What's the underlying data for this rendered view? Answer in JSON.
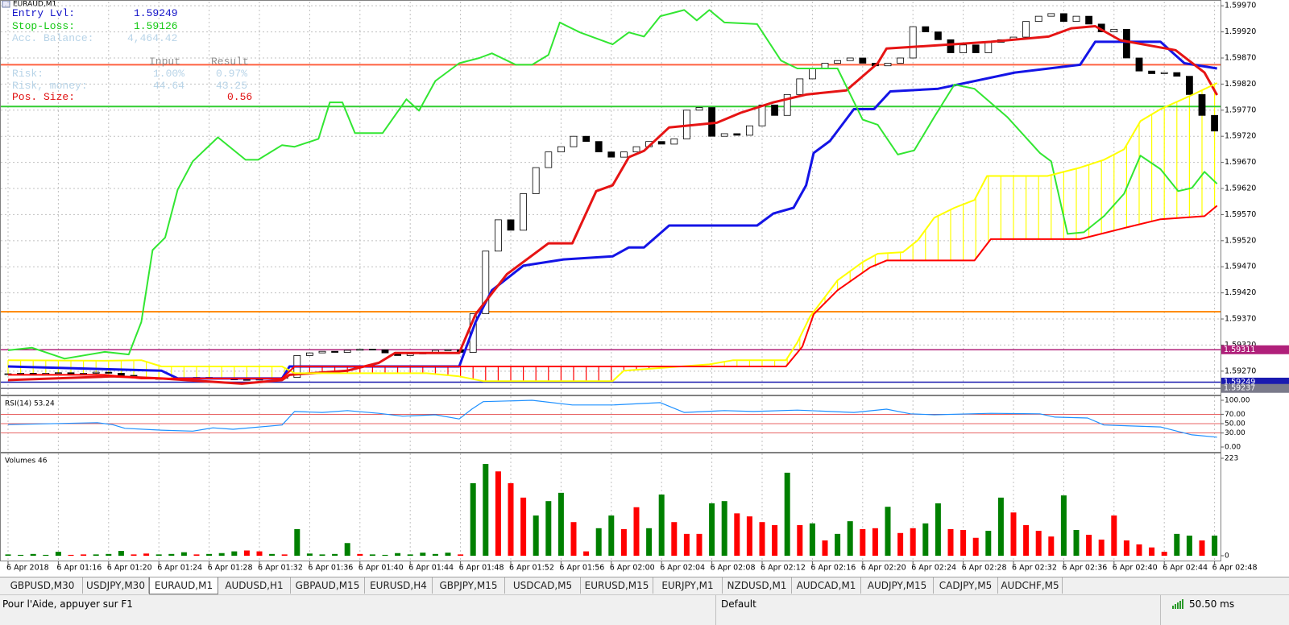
{
  "window": {
    "title": "EURAUD,M1"
  },
  "info_panel": {
    "entry_label": "Entry Lvl:",
    "entry_value": "1.59249",
    "stop_label": "Stop-Loss:",
    "stop_value": "1.59126",
    "balance_label": "Acc. Balance:",
    "balance_value": "4,464.42",
    "input_header": "Input",
    "result_header": "Result",
    "rows": [
      [
        "Risk:",
        "1.00%",
        "0.97%"
      ],
      [
        "Risk, money:",
        "44.64",
        "43.25"
      ]
    ],
    "pos_label": "Pos. Size:",
    "pos_value": "0.56"
  },
  "price_chart": {
    "type": "candlestick",
    "ylim": [
      1.59225,
      1.59978
    ],
    "yticks": [
      {
        "value": 1.5997,
        "label": "1.59970"
      },
      {
        "value": 1.5992,
        "label": "1.59920"
      },
      {
        "value": 1.5987,
        "label": "1.59870"
      },
      {
        "value": 1.5982,
        "label": "1.59820"
      },
      {
        "value": 1.5977,
        "label": "1.59770"
      },
      {
        "value": 1.5972,
        "label": "1.59720"
      },
      {
        "value": 1.5967,
        "label": "1.59670"
      },
      {
        "value": 1.5962,
        "label": "1.59620"
      },
      {
        "value": 1.5957,
        "label": "1.59570"
      },
      {
        "value": 1.5952,
        "label": "1.59520"
      },
      {
        "value": 1.5947,
        "label": "1.59470"
      },
      {
        "value": 1.5942,
        "label": "1.59420"
      },
      {
        "value": 1.5937,
        "label": "1.59370"
      },
      {
        "value": 1.5932,
        "label": "1.59320"
      },
      {
        "value": 1.5927,
        "label": "1.59270"
      }
    ],
    "xticks": [
      {
        "value": 0,
        "label": "6 Apr 2018"
      },
      {
        "value": 4,
        "label": "6 Apr 01:16"
      },
      {
        "value": 8,
        "label": "6 Apr 01:20"
      },
      {
        "value": 12,
        "label": "6 Apr 01:24"
      },
      {
        "value": 16,
        "label": "6 Apr 01:28"
      },
      {
        "value": 20,
        "label": "6 Apr 01:32"
      },
      {
        "value": 24,
        "label": "6 Apr 01:36"
      },
      {
        "value": 28,
        "label": "6 Apr 01:40"
      },
      {
        "value": 32,
        "label": "6 Apr 01:44"
      },
      {
        "value": 36,
        "label": "6 Apr 01:48"
      },
      {
        "value": 40,
        "label": "6 Apr 01:52"
      },
      {
        "value": 44,
        "label": "6 Apr 01:56"
      },
      {
        "value": 48,
        "label": "6 Apr 02:00"
      },
      {
        "value": 52,
        "label": "6 Apr 02:04"
      },
      {
        "value": 56,
        "label": "6 Apr 02:08"
      },
      {
        "value": 60,
        "label": "6 Apr 02:12"
      },
      {
        "value": 64,
        "label": "6 Apr 02:16"
      },
      {
        "value": 68,
        "label": "6 Apr 02:20"
      },
      {
        "value": 72,
        "label": "6 Apr 02:24"
      },
      {
        "value": 76,
        "label": "6 Apr 02:28"
      },
      {
        "value": 80,
        "label": "6 Apr 02:32"
      },
      {
        "value": 84,
        "label": "6 Apr 02:36"
      },
      {
        "value": 88,
        "label": "6 Apr 02:40"
      },
      {
        "value": 92,
        "label": "6 Apr 02:44"
      },
      {
        "value": 96,
        "label": "6 Apr 02:48"
      }
    ],
    "grid": true,
    "close": [
      1.59265,
      1.59266,
      1.59264,
      1.59266,
      1.59267,
      1.59265,
      1.59266,
      1.59268,
      1.59266,
      1.59262,
      1.59258,
      1.59256,
      1.59255,
      1.59254,
      1.59256,
      1.59258,
      1.59257,
      1.59255,
      1.59254,
      1.59253,
      1.59255,
      1.59257,
      1.59258,
      1.593,
      1.59305,
      1.59308,
      1.59306,
      1.5931,
      1.59312,
      1.59311,
      1.59305,
      1.593,
      1.59303,
      1.59306,
      1.5931,
      1.59311,
      1.59306,
      1.5938,
      1.595,
      1.5956,
      1.5954,
      1.5961,
      1.5966,
      1.5969,
      1.597,
      1.5972,
      1.5971,
      1.5969,
      1.5968,
      1.5969,
      1.597,
      1.5971,
      1.59705,
      1.59715,
      1.5977,
      1.59775,
      1.5972,
      1.59725,
      1.59722,
      1.5974,
      1.5978,
      1.5976,
      1.598,
      1.5983,
      1.5985,
      1.5986,
      1.59865,
      1.5987,
      1.5986,
      1.59855,
      1.5986,
      1.5987,
      1.5993,
      1.5992,
      1.59905,
      1.5988,
      1.59895,
      1.5988,
      1.599,
      1.59905,
      1.5991,
      1.5994,
      1.5995,
      1.59955,
      1.5994,
      1.5995,
      1.59935,
      1.5992,
      1.59925,
      1.5987,
      1.59845,
      1.5984,
      1.59842,
      1.59835,
      1.598,
      1.5976,
      1.5973
    ],
    "up_color": "#ffffff",
    "down_color": "#000000",
    "series": [
      {
        "color": "#1414e6",
        "x": [
          0,
          12.2,
          13.5,
          21.8,
          22.4,
          35.9,
          37.2,
          38.5,
          41,
          44.2,
          48.1,
          49.4,
          50.6,
          52.6,
          59.6,
          60.9,
          62.5,
          63.5,
          64.1,
          65.4,
          67.3,
          68.9,
          70.2,
          74,
          80.1,
          85.3,
          86.5,
          91.7,
          93.6,
          96.2
        ],
        "values": [
          1.59279,
          1.59271,
          1.59256,
          1.59256,
          1.59279,
          1.59279,
          1.59364,
          1.59425,
          1.59472,
          1.59484,
          1.5949,
          1.59507,
          1.59507,
          1.59549,
          1.59549,
          1.59572,
          1.59583,
          1.59626,
          1.59688,
          1.59711,
          1.59772,
          1.59772,
          1.59806,
          1.59811,
          1.59842,
          1.59857,
          1.59901,
          1.59901,
          1.5986,
          1.5985
        ]
      },
      {
        "color": "#e61414",
        "x": [
          0,
          8.3,
          12.2,
          18.6,
          21.8,
          22.4,
          27,
          29.5,
          30.8,
          35.9,
          37.2,
          39.7,
          43,
          44.9,
          46.8,
          48.1,
          49.4,
          50.6,
          52.6,
          56.4,
          58.3,
          60.9,
          63.5,
          66.7,
          69.2,
          69.9,
          73.1,
          78.2,
          82.8,
          84.6,
          86.5,
          88.5,
          92.9,
          95.2,
          96.2
        ],
        "values": [
          1.59253,
          1.5926,
          1.59256,
          1.59246,
          1.59253,
          1.59263,
          1.59271,
          1.59286,
          1.59305,
          1.59305,
          1.59379,
          1.59456,
          1.59515,
          1.59515,
          1.59615,
          1.59626,
          1.5968,
          1.59692,
          1.59737,
          1.59746,
          1.59765,
          1.59785,
          1.598,
          1.59808,
          1.5986,
          1.59888,
          1.59893,
          1.59901,
          1.59911,
          1.59927,
          1.59931,
          1.59904,
          1.59885,
          1.59842,
          1.59799
        ]
      },
      {
        "color": "#32e632",
        "x": [
          0,
          1.9,
          4.5,
          7.7,
          9.6,
          10.6,
          11.5,
          12.5,
          13.5,
          14.7,
          16.7,
          18.9,
          19.9,
          21.8,
          22.8,
          24.7,
          25.6,
          26.6,
          27.6,
          29.8,
          31.7,
          32.7,
          34,
          35.9,
          37.5,
          38.5,
          40.4,
          41.7,
          43,
          43.9,
          45.5,
          48.1,
          49.4,
          50.6,
          51.9,
          53.8,
          54.8,
          55.8,
          57,
          59.6,
          61.5,
          62.8,
          66,
          68,
          69.2,
          70.8,
          72.1,
          73.7,
          75.3,
          76.9,
          79.5,
          82.1,
          83,
          84.3,
          85.6,
          87.2,
          88.8,
          90.1,
          91.7,
          93.1,
          94.2,
          95.2,
          96.2
        ],
        "values": [
          1.5931,
          1.59315,
          1.59294,
          1.59307,
          1.59302,
          1.59364,
          1.59502,
          1.59526,
          1.59618,
          1.59672,
          1.59718,
          1.59675,
          1.59675,
          1.59703,
          1.597,
          1.59715,
          1.59785,
          1.59785,
          1.59726,
          1.59726,
          1.59791,
          1.59769,
          1.59826,
          1.5986,
          1.5987,
          1.59879,
          1.59857,
          1.59857,
          1.59876,
          1.59938,
          1.59919,
          1.59896,
          1.59919,
          1.59911,
          1.5995,
          1.59962,
          1.59942,
          1.59962,
          1.59938,
          1.59935,
          1.59865,
          1.5985,
          1.5985,
          1.59752,
          1.59742,
          1.59685,
          1.59693,
          1.59757,
          1.59819,
          1.59811,
          1.59757,
          1.59688,
          1.59672,
          1.59533,
          1.59536,
          1.59567,
          1.5961,
          1.59683,
          1.59657,
          1.59615,
          1.59621,
          1.59652,
          1.59629
        ]
      },
      {
        "color": "#ffff00",
        "x": [
          0,
          7.7,
          10.6,
          12.2,
          21.8,
          22.8,
          33.3,
          35.9,
          37.8,
          48.1,
          49,
          55.8,
          57.7,
          61.9,
          62.8,
          63.8,
          66,
          68,
          69.2,
          71.2,
          72.4,
          73.7,
          75.3,
          76.9,
          77.9,
          82.7,
          85.3,
          87.2,
          88.8,
          90.1,
          91.7,
          94.2,
          96.2
        ],
        "values": [
          1.59291,
          1.5929,
          1.59291,
          1.59279,
          1.59279,
          1.59266,
          1.59266,
          1.5926,
          1.59251,
          1.59251,
          1.59271,
          1.59283,
          1.59291,
          1.59291,
          1.59325,
          1.59374,
          1.59444,
          1.59479,
          1.59495,
          1.59498,
          1.59521,
          1.59564,
          1.59583,
          1.59598,
          1.59644,
          1.59644,
          1.5966,
          1.59675,
          1.59695,
          1.59749,
          1.59772,
          1.59799,
          1.59822
        ]
      },
      {
        "color": "#ff0000",
        "x": [
          0,
          7.7,
          10.6,
          21.8,
          22.8,
          61.9,
          63.2,
          64.1,
          66,
          68.6,
          69.9,
          76.9,
          78.2,
          85.3,
          89.1,
          91.7,
          95.2,
          96.2
        ],
        "values": [
          1.59263,
          1.59263,
          1.59256,
          1.59256,
          1.59279,
          1.59279,
          1.59317,
          1.59379,
          1.59425,
          1.59469,
          1.59482,
          1.59482,
          1.59523,
          1.59523,
          1.59546,
          1.59561,
          1.59567,
          1.59587
        ]
      }
    ],
    "levels": [
      {
        "value": 1.59857,
        "color": "#ff6040"
      },
      {
        "value": 1.59777,
        "color": "#32cd32"
      },
      {
        "value": 1.59384,
        "color": "#ff8c00"
      },
      {
        "value": 1.59311,
        "label": "1.59311",
        "color": "#b0207a"
      },
      {
        "value": 1.59249,
        "label": "1.59249",
        "color": "#1a1ab0"
      },
      {
        "value": 1.59237,
        "label": "1.59237",
        "color": "#7a7a8a"
      }
    ]
  },
  "rsi_chart": {
    "type": "line",
    "title": "RSI(14) 53.24",
    "ylim": [
      0,
      100
    ],
    "yticks": [
      {
        "value": 100,
        "label": "100.00"
      },
      {
        "value": 70,
        "label": "70.00"
      },
      {
        "value": 50,
        "label": "50.00"
      },
      {
        "value": 30,
        "label": "30.00"
      },
      {
        "value": 0,
        "label": "0.00"
      }
    ],
    "levels": [
      70,
      50,
      30
    ],
    "level_color": "#e03030",
    "color": "#1e90ff",
    "x": [
      0,
      7.1,
      8.3,
      9.3,
      12.2,
      14.7,
      16.3,
      17.9,
      21.8,
      22.8,
      25,
      27,
      29.5,
      31.4,
      34,
      35.9,
      36.9,
      37.8,
      41.7,
      44.9,
      48.1,
      51.9,
      53.8,
      57,
      59.3,
      62.8,
      67.3,
      69.9,
      71.8,
      73.7,
      78.2,
      82.1,
      83.3,
      85.9,
      87.2,
      91.7,
      93,
      94.2,
      96.2
    ],
    "values": [
      48,
      52,
      48,
      40,
      36,
      34,
      41,
      38,
      47,
      76,
      74,
      78,
      72,
      66,
      69,
      60,
      81,
      97,
      100,
      90,
      90,
      95,
      74,
      78,
      76,
      79,
      74,
      81,
      71,
      69,
      72,
      71,
      64,
      62,
      47,
      43,
      34,
      26,
      21
    ]
  },
  "volume_chart": {
    "type": "bar",
    "title": "Volumes 46",
    "ylim": [
      0,
      223
    ],
    "yticks": [
      223,
      0
    ],
    "values": [
      3,
      2,
      4,
      2,
      9,
      2,
      3,
      3,
      4,
      11,
      3,
      5,
      3,
      4,
      8,
      3,
      4,
      6,
      10,
      12,
      10,
      4,
      3,
      61,
      5,
      3,
      4,
      29,
      4,
      3,
      2,
      6,
      3,
      7,
      4,
      7,
      3,
      166,
      210,
      193,
      166,
      133,
      92,
      125,
      144,
      77,
      10,
      63,
      92,
      61,
      111,
      63,
      140,
      77,
      50,
      50,
      120,
      125,
      97,
      90,
      77,
      70,
      190,
      70,
      74,
      35,
      50,
      79,
      61,
      63,
      112,
      52,
      63,
      74,
      120,
      61,
      59,
      41,
      57,
      133,
      99,
      70,
      57,
      44,
      138,
      59,
      48,
      37,
      92,
      35,
      26,
      19,
      9,
      50,
      46,
      35,
      46
    ],
    "colors": [
      "green",
      "green",
      "green",
      "green",
      "green",
      "red",
      "red",
      "green",
      "green",
      "green",
      "red",
      "red",
      "green",
      "green",
      "green",
      "red",
      "green",
      "green",
      "green",
      "red",
      "red",
      "green",
      "red",
      "green",
      "green",
      "green",
      "green",
      "green",
      "red",
      "green",
      "green",
      "green",
      "green",
      "green",
      "green",
      "green",
      "red",
      "green",
      "green",
      "red",
      "red",
      "red",
      "green",
      "green",
      "green",
      "red",
      "red",
      "green",
      "green",
      "red",
      "red",
      "green",
      "green",
      "red",
      "red",
      "red",
      "green",
      "green",
      "red",
      "red",
      "red",
      "red",
      "green",
      "red",
      "green",
      "red",
      "green",
      "green",
      "red",
      "red",
      "green",
      "red",
      "red",
      "green",
      "green",
      "red",
      "red",
      "red",
      "green",
      "green",
      "red",
      "red",
      "red",
      "red",
      "green",
      "green",
      "red",
      "red",
      "red",
      "red",
      "red",
      "red",
      "red",
      "green",
      "green",
      "red",
      "green"
    ]
  },
  "tabs": [
    "GBPUSD,M30",
    "USDJPY,M30",
    "EURAUD,M1",
    "AUDUSD,H1",
    "GBPAUD,M15",
    "EURUSD,H4",
    "GBPJPY,M15",
    "USDCAD,M5",
    "EURUSD,M15",
    "EURJPY,M1",
    "NZDUSD,M1",
    "AUDCAD,M1",
    "AUDJPY,M15",
    "CADJPY,M5",
    "AUDCHF,M5"
  ],
  "active_tab": "EURAUD,M1",
  "status": {
    "help": "Pour l'Aide, appuyer sur F1",
    "profile": "Default",
    "ping": "50.50 ms"
  }
}
